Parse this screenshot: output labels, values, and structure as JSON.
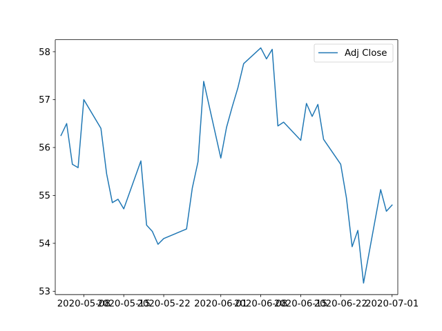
{
  "chart_data": {
    "type": "line",
    "title": "",
    "xlabel": "",
    "ylabel": "",
    "grid": false,
    "legend_position": "upper right",
    "x_tick_labels": [
      "2020-05-08",
      "2020-05-15",
      "2020-05-22",
      "2020-06-01",
      "2020-06-08",
      "2020-06-15",
      "2020-06-22",
      "2020-07-01"
    ],
    "y_tick_labels": [
      "53",
      "54",
      "55",
      "56",
      "57",
      "58"
    ],
    "ylim": [
      52.93,
      58.25
    ],
    "xlim": [
      "2020-05-03",
      "2020-07-02"
    ],
    "series": [
      {
        "name": "Adj Close",
        "color": "#1f77b4",
        "x": [
          "2020-05-04",
          "2020-05-05",
          "2020-05-06",
          "2020-05-07",
          "2020-05-08",
          "2020-05-11",
          "2020-05-12",
          "2020-05-13",
          "2020-05-14",
          "2020-05-15",
          "2020-05-18",
          "2020-05-19",
          "2020-05-20",
          "2020-05-21",
          "2020-05-22",
          "2020-05-26",
          "2020-05-27",
          "2020-05-28",
          "2020-05-29",
          "2020-06-01",
          "2020-06-02",
          "2020-06-03",
          "2020-06-04",
          "2020-06-05",
          "2020-06-08",
          "2020-06-09",
          "2020-06-10",
          "2020-06-11",
          "2020-06-12",
          "2020-06-15",
          "2020-06-16",
          "2020-06-17",
          "2020-06-18",
          "2020-06-19",
          "2020-06-22",
          "2020-06-23",
          "2020-06-24",
          "2020-06-25",
          "2020-06-26",
          "2020-06-29",
          "2020-06-30",
          "2020-07-01"
        ],
        "values": [
          56.25,
          56.5,
          55.65,
          55.58,
          57.0,
          56.4,
          55.45,
          54.85,
          54.92,
          54.72,
          55.72,
          54.38,
          54.25,
          53.98,
          54.1,
          54.3,
          55.15,
          55.7,
          57.38,
          55.78,
          56.42,
          56.85,
          57.25,
          57.75,
          58.08,
          57.85,
          58.05,
          56.45,
          56.53,
          56.15,
          56.92,
          56.65,
          56.9,
          56.17,
          55.65,
          54.95,
          53.93,
          54.27,
          53.17,
          55.12,
          54.67,
          54.8
        ]
      }
    ]
  }
}
